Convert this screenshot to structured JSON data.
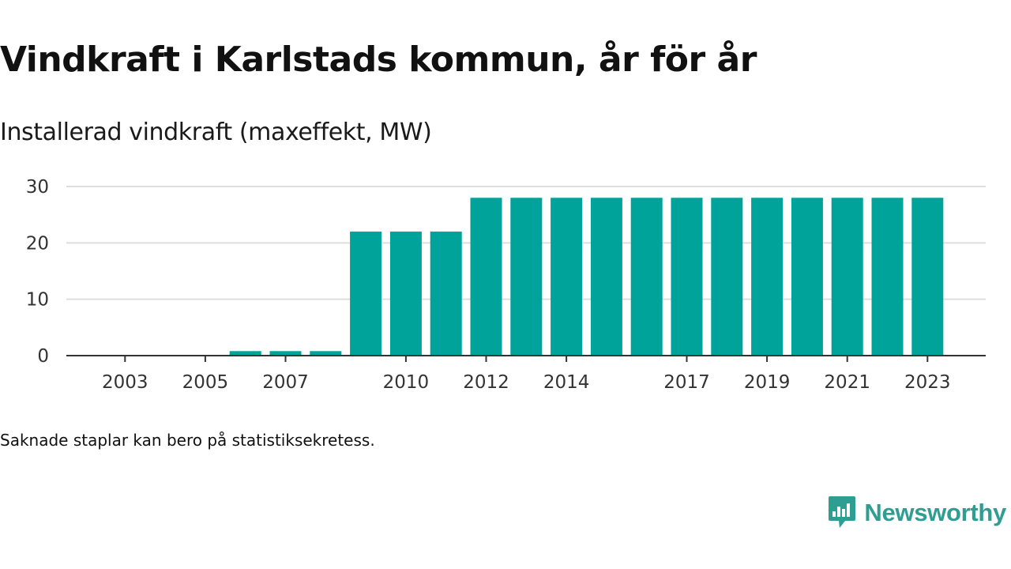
{
  "title": "Vindkraft i Karlstads kommun, år för år",
  "subtitle": "Installerad vindkraft (maxeffekt, MW)",
  "note": "Saknade staplar kan bero på statistiksekretess.",
  "brand": {
    "name": "Newsworthy",
    "icon": "newsworthy-logo-icon",
    "color": "#2f9e92"
  },
  "chart_data": {
    "type": "bar",
    "categories": [
      "2002",
      "2003",
      "2004",
      "2005",
      "2006",
      "2007",
      "2008",
      "2009",
      "2010",
      "2011",
      "2012",
      "2013",
      "2014",
      "2015",
      "2016",
      "2017",
      "2018",
      "2019",
      "2020",
      "2021",
      "2022",
      "2023"
    ],
    "x_tick_labels": [
      "2003",
      "2005",
      "2007",
      "2010",
      "2012",
      "2014",
      "2017",
      "2019",
      "2021",
      "2023"
    ],
    "values": [
      0,
      0,
      0,
      0,
      0.8,
      0.8,
      0.8,
      22,
      22,
      22,
      28,
      28,
      28,
      28,
      28,
      28,
      28,
      28,
      28,
      28,
      28,
      28
    ],
    "y_ticks": [
      0,
      10,
      20,
      30
    ],
    "ylim": [
      0,
      30
    ],
    "grid": true,
    "bar_color": "#00a39a",
    "grid_color": "#dddddd",
    "axis_color": "#333333",
    "xlabel": "",
    "ylabel": ""
  }
}
